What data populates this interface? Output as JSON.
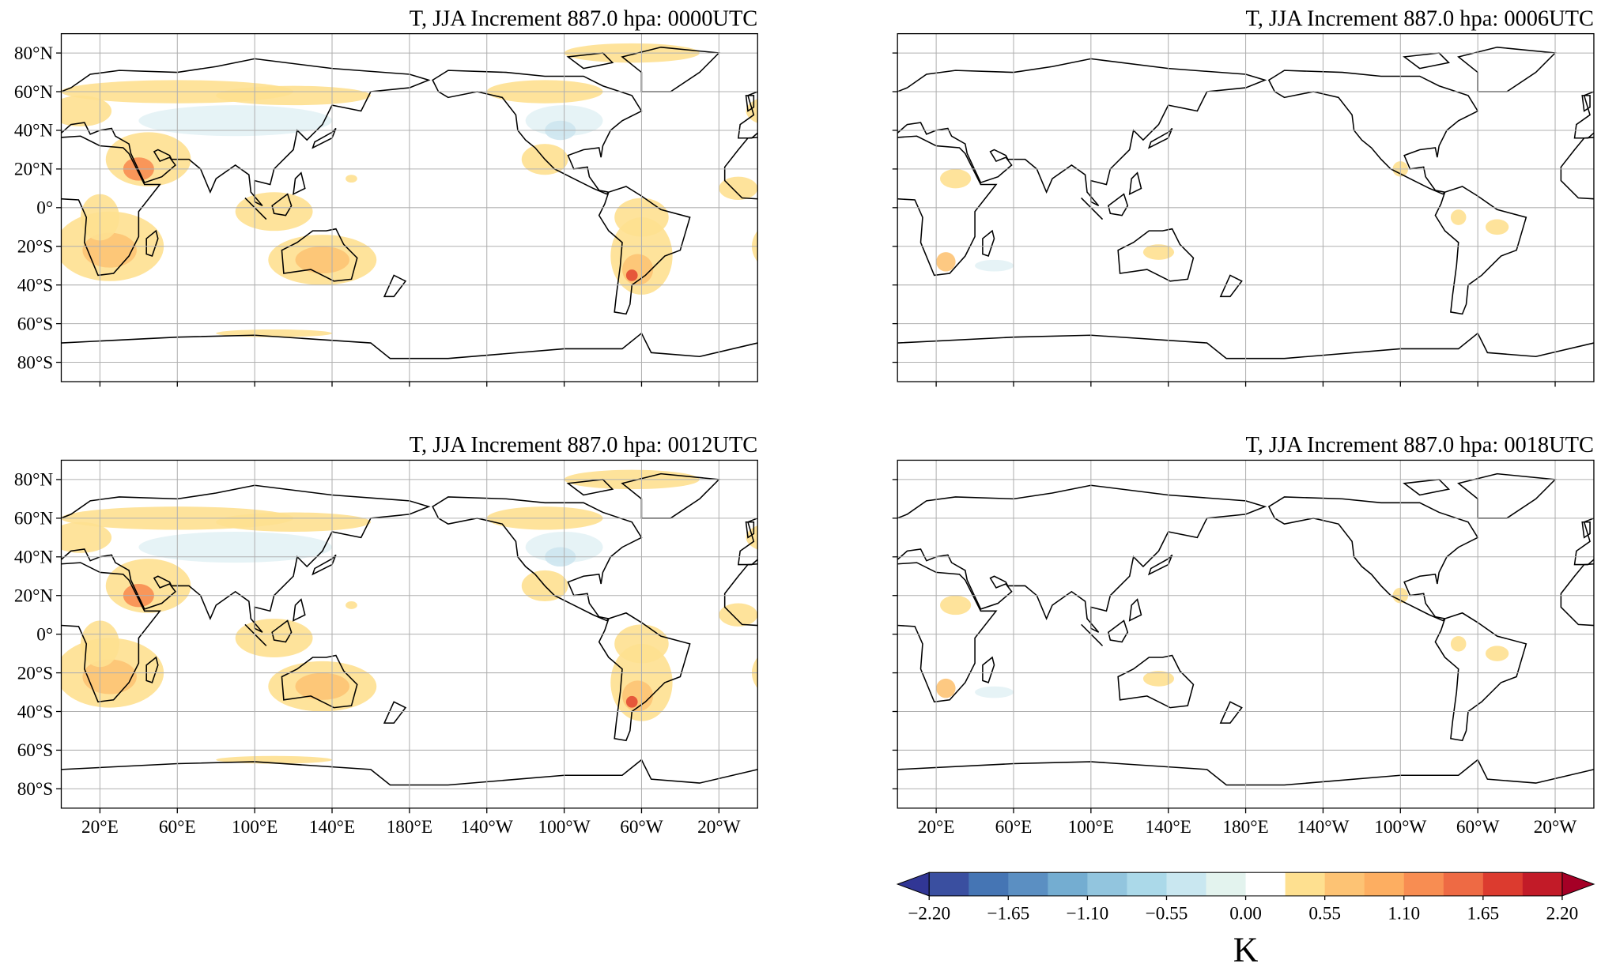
{
  "panels": [
    {
      "title": "T, JJA Increment 887.0 hpa:  0000UTC"
    },
    {
      "title": "T, JJA Increment 887.0 hpa:  0006UTC"
    },
    {
      "title": "T, JJA Increment 887.0 hpa:  0012UTC"
    },
    {
      "title": "T, JJA Increment 887.0 hpa:  0018UTC"
    }
  ],
  "lat_ticks": [
    "80°N",
    "60°N",
    "40°N",
    "20°N",
    "0°",
    "20°S",
    "40°S",
    "60°S",
    "80°S"
  ],
  "lon_ticks": [
    "20°E",
    "60°E",
    "100°E",
    "140°E",
    "180°E",
    "140°W",
    "100°W",
    "60°W",
    "20°W"
  ],
  "colorbar": {
    "ticks": [
      "−2.20",
      "−1.65",
      "−1.10",
      "−0.55",
      "0.00",
      "0.55",
      "1.10",
      "1.65",
      "2.20"
    ],
    "unit": "K"
  }
}
